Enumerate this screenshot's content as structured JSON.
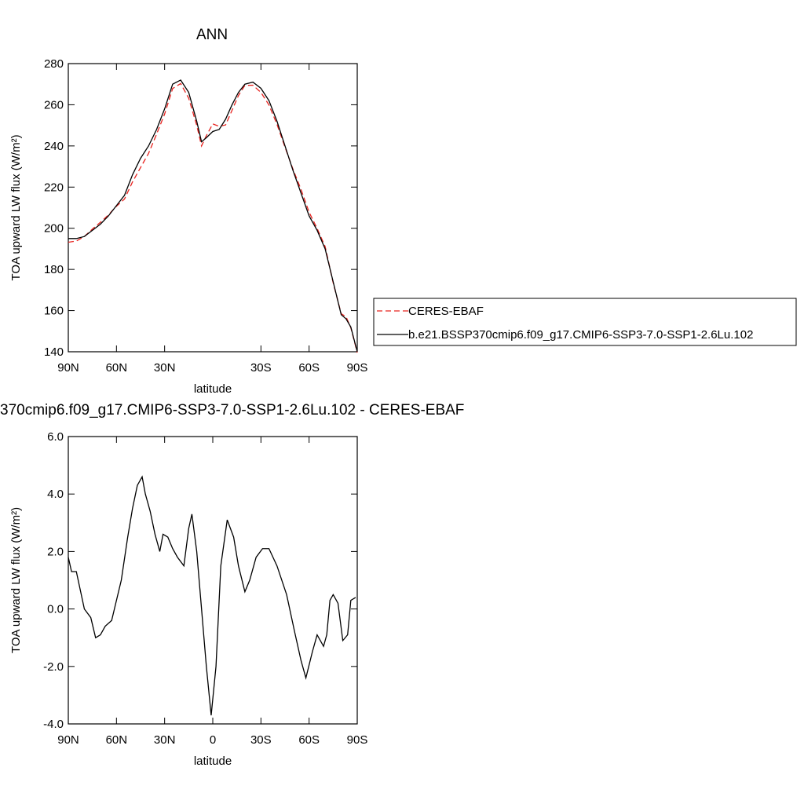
{
  "chart_data": [
    {
      "type": "line",
      "title": "ANN",
      "x_label": "latitude",
      "y_label": "TOA upward LW flux (W/m²)",
      "xlim": [
        90,
        -90
      ],
      "xticks": [
        {
          "value": 90,
          "label": "90N"
        },
        {
          "value": 60,
          "label": "60N"
        },
        {
          "value": 30,
          "label": "30N"
        },
        {
          "value": -30,
          "label": "30S"
        },
        {
          "value": -60,
          "label": "60S"
        },
        {
          "value": -90,
          "label": "90S"
        }
      ],
      "ylim": [
        140,
        280
      ],
      "yticks": [
        140,
        160,
        180,
        200,
        220,
        240,
        260,
        280
      ],
      "legend": "right",
      "x": [
        90,
        85,
        80,
        75,
        70,
        65,
        60,
        55,
        50,
        45,
        40,
        35,
        30,
        25,
        20,
        15,
        10,
        7,
        4,
        0,
        -4,
        -8,
        -12,
        -16,
        -20,
        -25,
        -30,
        -35,
        -40,
        -45,
        -50,
        -55,
        -60,
        -65,
        -70,
        -75,
        -80,
        -83,
        -86,
        -90
      ],
      "series": [
        {
          "name": "CERES-EBAF",
          "color": "#e8231f",
          "dash": true,
          "values": [
            193.2,
            193.8,
            196,
            199.6,
            202.9,
            206.5,
            210.7,
            214.2,
            222.5,
            229.5,
            236.4,
            245.7,
            255.5,
            267.9,
            270.3,
            263.2,
            250,
            240,
            245,
            250.7,
            249.5,
            250.2,
            257.3,
            264.5,
            269.4,
            269.5,
            266,
            259.9,
            250.5,
            239.4,
            228.6,
            218.8,
            207.8,
            199.9,
            191.1,
            173.5,
            158.5,
            157,
            151.7,
            139.6
          ]
        },
        {
          "name": "b.e21.BSSP370cmip6.f09_g17.CMIP6-SSP3-7.0-SSP1-2.6Lu.102",
          "color": "#000000",
          "dash": false,
          "values": [
            195,
            195,
            196,
            199,
            202,
            206,
            211,
            216,
            226,
            234,
            240,
            248,
            258,
            270,
            272,
            266,
            252,
            242,
            244,
            247,
            248,
            253,
            260,
            266,
            270,
            271,
            268,
            262,
            252,
            240,
            228,
            217,
            206,
            199,
            190,
            174,
            158,
            156,
            152,
            140
          ]
        }
      ]
    },
    {
      "type": "line",
      "title": "370cmip6.f09_g17.CMIP6-SSP3-7.0-SSP1-2.6Lu.102 - CERES-EBAF",
      "x_label": "latitude",
      "y_label": "TOA upward LW flux (W/m²)",
      "xlim": [
        90,
        -90
      ],
      "xticks": [
        {
          "value": 90,
          "label": "90N"
        },
        {
          "value": 60,
          "label": "60N"
        },
        {
          "value": 30,
          "label": "30N"
        },
        0,
        {
          "value": -30,
          "label": "30S"
        },
        {
          "value": -60,
          "label": "60S"
        },
        {
          "value": -90,
          "label": "90S"
        }
      ],
      "ylim": [
        -4,
        6
      ],
      "yticks": [
        {
          "value": -4,
          "label": "-4.0"
        },
        {
          "value": -2,
          "label": "-2.0"
        },
        {
          "value": 0,
          "label": "0.0"
        },
        {
          "value": 2,
          "label": "2.0"
        },
        {
          "value": 4,
          "label": "4.0"
        },
        {
          "value": 6,
          "label": "6.0"
        }
      ],
      "color": "#000000",
      "x": [
        90,
        88,
        85,
        80,
        76,
        73,
        70,
        67,
        63,
        60,
        57,
        53,
        50,
        47,
        44,
        42,
        39,
        36,
        33,
        31,
        28,
        25,
        22,
        18,
        15,
        13,
        10,
        7,
        4,
        1,
        -2,
        -5,
        -9,
        -13,
        -16,
        -20,
        -23,
        -27,
        -31,
        -35,
        -40,
        -46,
        -51,
        -55,
        -58,
        -62,
        -65,
        -67,
        -69,
        -71,
        -73,
        -75,
        -78,
        -81,
        -84,
        -86,
        -89
      ],
      "values": [
        1.8,
        1.3,
        1.3,
        0,
        -0.3,
        -1.0,
        -0.9,
        -0.6,
        -0.4,
        0.3,
        1.0,
        2.5,
        3.5,
        4.3,
        4.6,
        4.0,
        3.4,
        2.6,
        2.0,
        2.6,
        2.5,
        2.1,
        1.8,
        1.5,
        2.8,
        3.3,
        2.0,
        0,
        -2.0,
        -3.7,
        -2.0,
        1.5,
        3.1,
        2.5,
        1.5,
        0.6,
        1.0,
        1.8,
        2.1,
        2.1,
        1.5,
        0.5,
        -0.8,
        -1.8,
        -2.4,
        -1.5,
        -0.9,
        -1.1,
        -1.3,
        -0.9,
        0.3,
        0.5,
        0.2,
        -1.1,
        -0.9,
        0.3,
        0.4
      ]
    }
  ]
}
